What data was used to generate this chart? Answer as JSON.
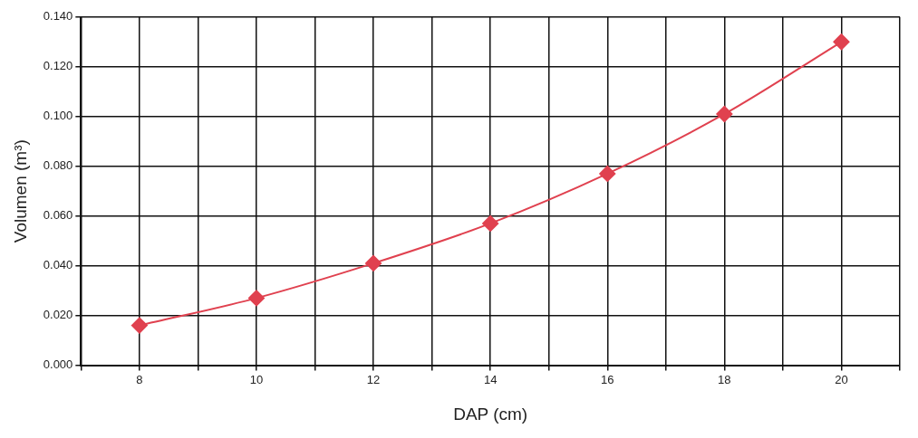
{
  "chart_data": {
    "type": "line",
    "xlabel": "DAP (cm)",
    "ylabel": "Volumen (m³)",
    "x": [
      8,
      10,
      12,
      14,
      16,
      18,
      20
    ],
    "series": [
      {
        "color": "#e0414f",
        "values": [
          0.016,
          0.027,
          0.041,
          0.057,
          0.077,
          0.101,
          0.13
        ]
      }
    ],
    "xlim": [
      7,
      21
    ],
    "xticks": [
      {
        "value": 7,
        "label": null
      },
      8,
      {
        "value": 9,
        "label": null
      },
      10,
      {
        "value": 11,
        "label": null
      },
      12,
      {
        "value": 13,
        "label": null
      },
      14,
      {
        "value": 15,
        "label": null
      },
      16,
      {
        "value": 17,
        "label": null
      },
      18,
      {
        "value": 19,
        "label": null
      },
      20,
      {
        "value": 21,
        "label": null
      }
    ],
    "ylim": [
      0,
      0.14
    ],
    "yticks": [
      {
        "value": 0,
        "label": "0.000"
      },
      {
        "value": 0.02,
        "label": "0.020"
      },
      {
        "value": 0.04,
        "label": "0.040"
      },
      {
        "value": 0.06,
        "label": "0.060"
      },
      {
        "value": 0.08,
        "label": "0.080"
      },
      {
        "value": 0.1,
        "label": "0.100"
      },
      {
        "value": 0.12,
        "label": "0.120"
      },
      {
        "value": 0.14,
        "label": "0.140"
      }
    ],
    "grid": true,
    "marker": "diamond",
    "line_style": "solid",
    "legend": false
  }
}
